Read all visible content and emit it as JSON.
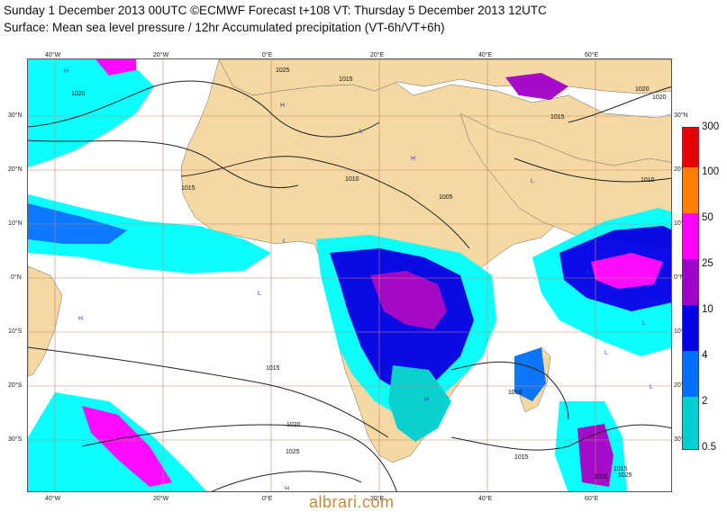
{
  "header": {
    "line1": "Sunday 1 December 2013 00UTC ©ECMWF Forecast t+108 VT: Thursday 5 December 2013 12UTC",
    "line2": "Surface: Mean sea level pressure / 12hr Accumulated precipitation (VT-6h/VT+6h)"
  },
  "map": {
    "top_lon_labels": [
      "40°W",
      "20°W",
      "0°E",
      "20°E",
      "40°E",
      "60°E"
    ],
    "bottom_lon_labels": [
      "40°W",
      "20°W",
      "0°E",
      "20°E",
      "40°E",
      "60°E"
    ],
    "left_lat_labels": [
      "30°N",
      "20°N",
      "10°N",
      "0°N",
      "10°S",
      "20°S",
      "30°S"
    ],
    "right_lat_labels": [
      "30°N",
      "20°N",
      "10°N",
      "0°N",
      "10°S",
      "20°S",
      "30°S"
    ],
    "isobar_labels": [
      "1025",
      "1020",
      "1015",
      "1010",
      "1005",
      "1015",
      "1010",
      "1015",
      "1020",
      "1025",
      "1020",
      "1015",
      "1010",
      "1015",
      "1020",
      "1025",
      "1015",
      "1020"
    ],
    "pressure_centers": [
      "H",
      "H",
      "L",
      "L",
      "H",
      "L",
      "H",
      "L",
      "L",
      "L",
      "H",
      "H",
      "L",
      "L"
    ],
    "land_color": "#f6d8a3",
    "sea_color": "#ffffff",
    "grid_color": "#c0876a"
  },
  "legend": {
    "labels": [
      "300",
      "100",
      "50",
      "25",
      "10",
      "4",
      "2",
      "0.5"
    ],
    "colors": [
      "#e50000",
      "#ff7f00",
      "#ff00ff",
      "#a000c8",
      "#0000e6",
      "#0070ff",
      "#00d0d0",
      "#00ffff"
    ]
  },
  "footer": {
    "credit": "albrari.com"
  }
}
